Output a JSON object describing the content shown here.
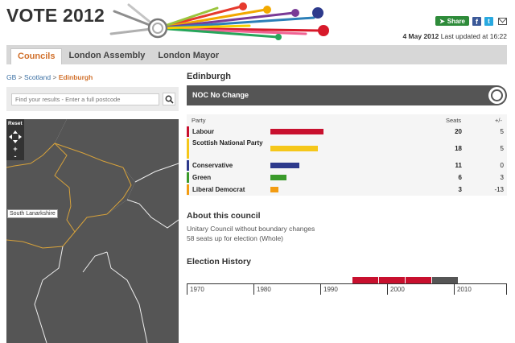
{
  "header": {
    "title": "VOTE 2012",
    "share_label": "Share",
    "date": "4 May 2012",
    "updated_text": "Last updated at 16:22"
  },
  "tabs": [
    {
      "label": "Councils",
      "active": true
    },
    {
      "label": "London Assembly",
      "active": false
    },
    {
      "label": "London Mayor",
      "active": false
    }
  ],
  "breadcrumb": {
    "items": [
      "GB",
      "Scotland",
      "Edinburgh"
    ],
    "separator": ">"
  },
  "search": {
    "placeholder": "Find your results - Enter a full postcode"
  },
  "map": {
    "reset_label": "Reset",
    "zoom_in": "+",
    "zoom_out": "-",
    "region_label": "South Lanarkshire"
  },
  "council": {
    "name": "Edinburgh",
    "result": "NOC No Change"
  },
  "party_table": {
    "headers": {
      "party": "Party",
      "seats": "Seats",
      "change": "+/-"
    },
    "rows": [
      {
        "party": "Labour",
        "seats": "20",
        "change": "5",
        "color": "#c8102e",
        "seat_count": 20
      },
      {
        "party": "Scottish National Party",
        "seats": "18",
        "change": "5",
        "color": "#f5c71a",
        "seat_count": 18
      },
      {
        "party": "Conservative",
        "seats": "11",
        "change": "0",
        "color": "#2d3a8c",
        "seat_count": 11
      },
      {
        "party": "Green",
        "seats": "6",
        "change": "3",
        "color": "#3a9a2a",
        "seat_count": 6
      },
      {
        "party": "Liberal Democrat",
        "seats": "3",
        "change": "-13",
        "color": "#f39c12",
        "seat_count": 3
      }
    ]
  },
  "about": {
    "title": "About this council",
    "lines": [
      "Unitary Council without boundary changes",
      "58 seats up for election (Whole)"
    ]
  },
  "history": {
    "title": "Election History",
    "years": [
      "1970",
      "1980",
      "1990",
      "2000",
      "2010"
    ],
    "periods": [
      {
        "label": "Labour",
        "color": "#c8102e"
      },
      {
        "label": "Labour",
        "color": "#c8102e"
      },
      {
        "label": "Labour",
        "color": "#c8102e"
      },
      {
        "label": "NOC",
        "color": "#555555"
      }
    ]
  },
  "colors": {
    "accent": "#d1702b",
    "link": "#3a6fa3",
    "share": "#2e8b3a",
    "map_fill": "#555555"
  }
}
